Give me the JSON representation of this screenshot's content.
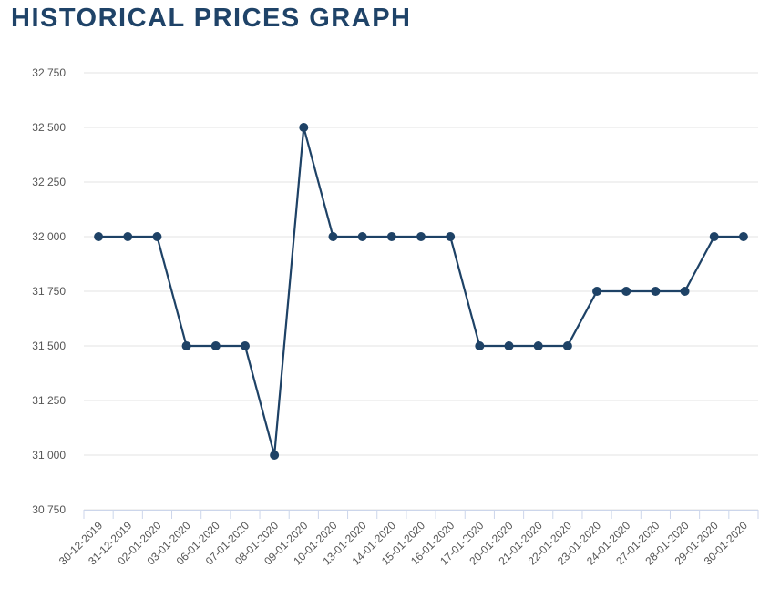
{
  "chart_data": {
    "type": "line",
    "title": "HISTORICAL PRICES GRAPH",
    "categories": [
      "30-12-2019",
      "31-12-2019",
      "02-01-2020",
      "03-01-2020",
      "06-01-2020",
      "07-01-2020",
      "08-01-2020",
      "09-01-2020",
      "10-01-2020",
      "13-01-2020",
      "14-01-2020",
      "15-01-2020",
      "16-01-2020",
      "17-01-2020",
      "20-01-2020",
      "21-01-2020",
      "22-01-2020",
      "23-01-2020",
      "24-01-2020",
      "27-01-2020",
      "28-01-2020",
      "29-01-2020",
      "30-01-2020"
    ],
    "values": [
      32000,
      32000,
      32000,
      31500,
      31500,
      31500,
      31000,
      32500,
      32000,
      32000,
      32000,
      32000,
      32000,
      31500,
      31500,
      31500,
      31500,
      31750,
      31750,
      31750,
      31750,
      32000,
      32000
    ],
    "color": "#1e4266",
    "ylim": [
      30750,
      32750
    ],
    "yticks": [
      {
        "value": 30750,
        "label": "30 750"
      },
      {
        "value": 31000,
        "label": "31 000"
      },
      {
        "value": 31250,
        "label": "31 250"
      },
      {
        "value": 31500,
        "label": "31 500"
      },
      {
        "value": 31750,
        "label": "31 750"
      },
      {
        "value": 32000,
        "label": "32 000"
      },
      {
        "value": 32250,
        "label": "32 250"
      },
      {
        "value": 32500,
        "label": "32 500"
      },
      {
        "value": 32750,
        "label": "32 750"
      }
    ],
    "grid": true
  }
}
